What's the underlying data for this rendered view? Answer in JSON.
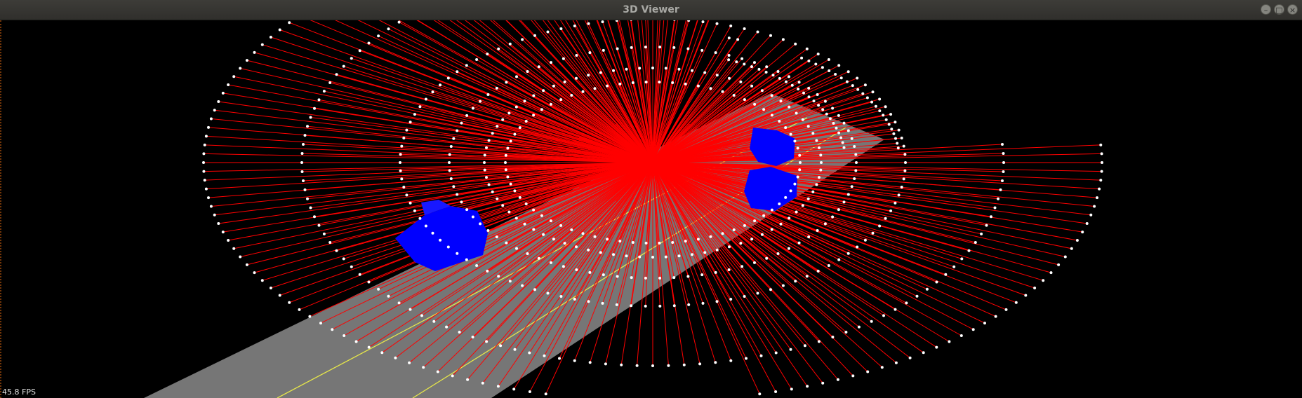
{
  "window": {
    "title": "3D Viewer",
    "buttons": [
      {
        "name": "minimize",
        "glyph": "–"
      },
      {
        "name": "maximize",
        "glyph": "□"
      },
      {
        "name": "close",
        "glyph": "×"
      }
    ]
  },
  "overlay": {
    "fps_text": "45.8 FPS"
  },
  "scene": {
    "background": "#000000",
    "road_color": "#808080",
    "lane_line_color": "#e6e64a",
    "ray_color": "#ff0000",
    "point_color": "#ffffff",
    "vehicle_color": "#0000ff",
    "vehicle_count": 3,
    "ring_count": 6
  }
}
